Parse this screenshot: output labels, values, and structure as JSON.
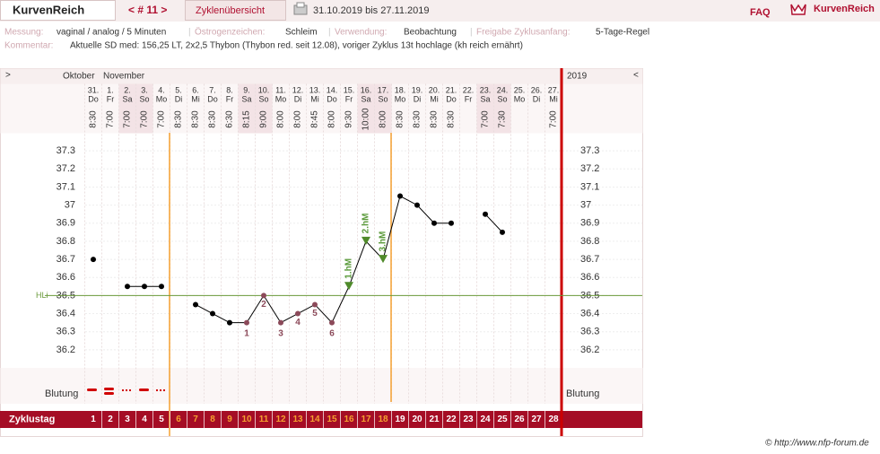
{
  "header": {
    "app_tab": "KurvenReich",
    "cycle_nav": "< # 11 >",
    "overview_tab": "Zyklenübersicht",
    "date_range": "31.10.2019 bis 27.11.2019",
    "faq": "FAQ",
    "logo": "KurvenReich"
  },
  "info": {
    "measurement_label": "Messung:",
    "measurement": "vaginal / analog / 5 Minuten",
    "estrogen_label": "Östrogenzeichen:",
    "estrogen": "Schleim",
    "usage_label": "Verwendung:",
    "usage": "Beobachtung",
    "release_label": "Freigabe Zyklusanfang:",
    "release": "5-Tage-Regel",
    "comment_label": "Kommentar:",
    "comment": "Aktuelle SD med: 156,25 LT, 2x2,5 Thybon (Thybon red. seit 12.08), voriger Zyklus 13t hochlage (kh reich ernährt)"
  },
  "chart_data": {
    "type": "line",
    "nav_left": ">",
    "nav_right": "<",
    "months": [
      "Oktober",
      "November"
    ],
    "year": "2019",
    "categories": [
      "31.",
      "1.",
      "2.",
      "3.",
      "4.",
      "5.",
      "6.",
      "7.",
      "8.",
      "9.",
      "10.",
      "11.",
      "12.",
      "13.",
      "14.",
      "15.",
      "16.",
      "17.",
      "18.",
      "19.",
      "20.",
      "21.",
      "22.",
      "23.",
      "24.",
      "25.",
      "26.",
      "27."
    ],
    "weekdays": [
      "Do",
      "Fr",
      "Sa",
      "So",
      "Mo",
      "Di",
      "Mi",
      "Do",
      "Fr",
      "Sa",
      "So",
      "Mo",
      "Di",
      "Mi",
      "Do",
      "Fr",
      "Sa",
      "So",
      "Mo",
      "Di",
      "Mi",
      "Do",
      "Fr",
      "Sa",
      "So",
      "Mo",
      "Di",
      "Mi"
    ],
    "times": [
      "8:30",
      "7:00",
      "7:00",
      "7:00",
      "7:00",
      "8:30",
      "8:30",
      "8:30",
      "6:30",
      "8:15",
      "9:00",
      "8:00",
      "8:00",
      "8:45",
      "8:00",
      "9:30",
      "10:00",
      "8:00",
      "8:30",
      "8:30",
      "8:30",
      "8:30",
      null,
      "7:00",
      "7:30",
      null,
      null,
      "7:00"
    ],
    "series": [
      {
        "color": "#000000",
        "values": [
          36.7,
          null,
          36.55,
          36.55,
          36.55,
          null,
          36.45,
          36.4,
          36.35,
          36.35,
          36.5,
          36.35,
          36.4,
          36.45,
          36.35,
          36.55,
          36.8,
          36.7,
          37.05,
          37.0,
          36.9,
          36.9,
          null,
          36.95,
          36.85,
          null,
          null,
          null
        ]
      }
    ],
    "low_labels": [
      null,
      null,
      null,
      null,
      null,
      null,
      null,
      null,
      null,
      "1",
      "2",
      "3",
      "4",
      "5",
      "6",
      null,
      null,
      null,
      null,
      null,
      null,
      null,
      null,
      null,
      null,
      null,
      null,
      null
    ],
    "high_labels": [
      null,
      null,
      null,
      null,
      null,
      null,
      null,
      null,
      null,
      null,
      null,
      null,
      null,
      null,
      null,
      "1.hM",
      "2.hM",
      "3.hM",
      null,
      null,
      null,
      null,
      null,
      null,
      null,
      null,
      null,
      null
    ],
    "ylim": [
      36.1,
      37.4
    ],
    "yticks": [
      37.3,
      37.2,
      37.1,
      37,
      36.9,
      36.8,
      36.7,
      36.6,
      36.5,
      36.4,
      36.3,
      36.2
    ],
    "coverline": {
      "label": "HLi",
      "value": 36.5
    },
    "bleeding_label": "Blutung",
    "cycle_day_label": "Zyklustag",
    "cycle_days": [
      1,
      2,
      3,
      4,
      5,
      6,
      7,
      8,
      9,
      10,
      11,
      12,
      13,
      14,
      15,
      16,
      17,
      18,
      19,
      20,
      21,
      22,
      23,
      24,
      25,
      26,
      27,
      28
    ],
    "copyright": "© http://www.nfp-forum.de"
  }
}
